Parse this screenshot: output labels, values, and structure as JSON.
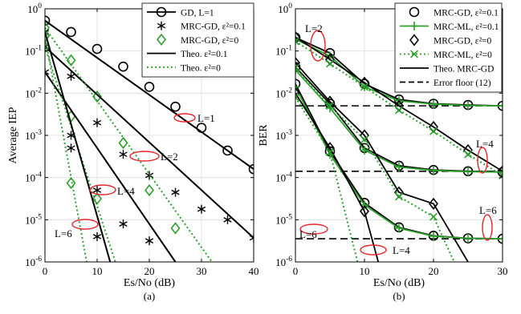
{
  "chart_data": [
    {
      "type": "line",
      "panel_label": "(a)",
      "xlabel": "Es/No (dB)",
      "ylabel": "Average IEP",
      "xlim": [
        0,
        40
      ],
      "ylim_log10": [
        -6,
        0
      ],
      "yscale": "log",
      "grid": true,
      "legend_position": "top-right",
      "xticks": [
        0,
        10,
        20,
        30,
        40
      ],
      "yticks": [
        {
          "exp": 0,
          "base": "10",
          "sup": "0"
        },
        {
          "exp": -1,
          "base": "10",
          "sup": "-1"
        },
        {
          "exp": -2,
          "base": "10",
          "sup": "-2"
        },
        {
          "exp": -3,
          "base": "10",
          "sup": "-3"
        },
        {
          "exp": -4,
          "base": "10",
          "sup": "-4"
        },
        {
          "exp": -5,
          "base": "10",
          "sup": "-5"
        },
        {
          "exp": -6,
          "base": "10",
          "sup": "-6"
        }
      ],
      "legend": [
        {
          "label": "GD, L=1",
          "marker": "circle",
          "line": "solid"
        },
        {
          "label": "MRC-GD, ε²=0.1",
          "marker": "asterisk",
          "line": "none"
        },
        {
          "label": "MRC-GD, ε²=0",
          "marker": "diamond",
          "line": "none",
          "color": "#2ca02c"
        },
        {
          "label": "Theo. ε²=0.1",
          "marker": "none",
          "line": "solid"
        },
        {
          "label": "Theo. ε²=0",
          "marker": "none",
          "line": "dotted",
          "color": "#2ca02c"
        }
      ],
      "annotations": [
        "L=1",
        "L=2",
        "L=4",
        "L=6"
      ],
      "series": [
        {
          "group": "L=1",
          "kind": "sim-gd",
          "x": [
            0,
            5,
            10,
            15,
            20,
            25,
            30,
            35,
            40
          ],
          "y_log10": [
            -0.28,
            -0.55,
            -0.95,
            -1.37,
            -1.85,
            -2.32,
            -2.82,
            -3.36,
            -3.8
          ]
        },
        {
          "group": "L=1",
          "kind": "theo-0.1",
          "x": [
            0,
            40
          ],
          "y_log10": [
            -0.28,
            -3.8
          ]
        },
        {
          "group": "L=2",
          "kind": "sim-0.1",
          "x": [
            0,
            5,
            10,
            15,
            20,
            25,
            30,
            35,
            40
          ],
          "y_log10": [
            -0.9,
            -1.6,
            -2.7,
            -3.45,
            -3.95,
            -4.35,
            -4.75,
            -5.0,
            -5.43
          ]
        },
        {
          "group": "L=2",
          "kind": "sim-0",
          "x": [
            0,
            5,
            10,
            15,
            20,
            25
          ],
          "y_log10": [
            -0.45,
            -1.22,
            -2.08,
            -3.18,
            -4.3,
            -5.2
          ]
        },
        {
          "group": "L=2",
          "kind": "theo-0.1",
          "x": [
            0,
            40
          ],
          "y_log10": [
            -0.9,
            -5.43
          ]
        },
        {
          "group": "L=2",
          "kind": "theo-0",
          "x": [
            0,
            32
          ],
          "y_log10": [
            -0.45,
            -6
          ]
        },
        {
          "group": "L=4",
          "kind": "sim-0.1",
          "x": [
            0,
            5,
            10,
            15,
            20
          ],
          "y_log10": [
            -1.5,
            -3.3,
            -4.3,
            -5.1,
            -5.5
          ]
        },
        {
          "group": "L=4",
          "kind": "sim-0",
          "x": [
            0,
            5,
            10
          ],
          "y_log10": [
            -0.9,
            -2.55,
            -4.5
          ]
        },
        {
          "group": "L=4",
          "kind": "theo-0.1",
          "x": [
            0,
            25
          ],
          "y_log10": [
            -1.5,
            -6
          ]
        },
        {
          "group": "L=4",
          "kind": "theo-0",
          "x": [
            0,
            13.5
          ],
          "y_log10": [
            -0.9,
            -6
          ]
        },
        {
          "group": "L=6",
          "kind": "sim-0.1",
          "x": [
            0,
            5,
            10
          ],
          "y_log10": [
            -0.55,
            -3.0,
            -5.4
          ]
        },
        {
          "group": "L=6",
          "kind": "sim-0",
          "x": [
            0,
            5
          ],
          "y_log10": [
            -0.65,
            -4.13
          ]
        },
        {
          "group": "L=6",
          "kind": "theo-0.1",
          "x": [
            0,
            12.5
          ],
          "y_log10": [
            -0.55,
            -6
          ]
        },
        {
          "group": "L=6",
          "kind": "theo-0",
          "x": [
            0,
            8
          ],
          "y_log10": [
            -0.65,
            -6
          ]
        }
      ]
    },
    {
      "type": "line",
      "panel_label": "(b)",
      "xlabel": "Es/No (dB)",
      "ylabel": "BER",
      "xlim": [
        0,
        30
      ],
      "ylim_log10": [
        -6,
        0
      ],
      "yscale": "log",
      "grid": true,
      "legend_position": "top-right",
      "xticks": [
        0,
        10,
        20,
        30
      ],
      "yticks": [
        {
          "exp": 0,
          "base": "10",
          "sup": "0"
        },
        {
          "exp": -1,
          "base": "10",
          "sup": "-1"
        },
        {
          "exp": -2,
          "base": "10",
          "sup": "-2"
        },
        {
          "exp": -3,
          "base": "10",
          "sup": "-3"
        },
        {
          "exp": -4,
          "base": "10",
          "sup": "-4"
        },
        {
          "exp": -5,
          "base": "10",
          "sup": "-5"
        },
        {
          "exp": -6,
          "base": "10",
          "sup": "-6"
        }
      ],
      "legend": [
        {
          "label": "MRC-GD, ε²=0.1",
          "marker": "circle",
          "line": "none"
        },
        {
          "label": "MRC-ML, ε²=0.1",
          "marker": "plus",
          "line": "solid",
          "color": "#2ca02c"
        },
        {
          "label": "MRC-GD, ε²=0",
          "marker": "diamond",
          "line": "none"
        },
        {
          "label": "MRC-ML, ε²=0",
          "marker": "x",
          "line": "dotted",
          "color": "#2ca02c"
        },
        {
          "label": "Theo. MRC-GD",
          "marker": "none",
          "line": "solid"
        },
        {
          "label": "Error floor (12)",
          "marker": "none",
          "line": "dashed"
        }
      ],
      "annotations": [
        "L=2",
        "L=4",
        "L=6",
        "L=6",
        "L=4"
      ],
      "error_floors_log10": [
        -2.3,
        -3.85,
        -5.45
      ],
      "series": [
        {
          "group": "L=2",
          "kind": "gd-0.1",
          "x": [
            0,
            5,
            10,
            15,
            20,
            25,
            30
          ],
          "y_log10": [
            -0.68,
            -1.05,
            -1.78,
            -2.15,
            -2.25,
            -2.28,
            -2.3
          ]
        },
        {
          "group": "L=2",
          "kind": "ml-0.1",
          "x": [
            0,
            5,
            10,
            15,
            20,
            25,
            30
          ],
          "y_log10": [
            -0.72,
            -1.12,
            -1.85,
            -2.18,
            -2.26,
            -2.29,
            -2.3
          ]
        },
        {
          "group": "L=2",
          "kind": "gd-0",
          "x": [
            0,
            5,
            10,
            15,
            20,
            25,
            30
          ],
          "y_log10": [
            -0.67,
            -1.2,
            -1.75,
            -2.3,
            -2.8,
            -3.35,
            -3.85
          ]
        },
        {
          "group": "L=2",
          "kind": "ml-0",
          "x": [
            0,
            5,
            10,
            15,
            20,
            25,
            30
          ],
          "y_log10": [
            -0.77,
            -1.3,
            -1.85,
            -2.4,
            -2.9,
            -3.45,
            -3.95
          ]
        },
        {
          "group": "L=4",
          "kind": "gd-0.1",
          "x": [
            0,
            5,
            10,
            15,
            20,
            25,
            30
          ],
          "y_log10": [
            -1.38,
            -2.25,
            -3.3,
            -3.72,
            -3.82,
            -3.85,
            -3.87
          ]
        },
        {
          "group": "L=4",
          "kind": "ml-0.1",
          "x": [
            0,
            5,
            10,
            15,
            20,
            25,
            30
          ],
          "y_log10": [
            -1.45,
            -2.35,
            -3.35,
            -3.75,
            -3.83,
            -3.86,
            -3.87
          ]
        },
        {
          "group": "L=4",
          "kind": "gd-0",
          "x": [
            0,
            5,
            10,
            15,
            20,
            25
          ],
          "y_log10": [
            -1.28,
            -2.2,
            -3.0,
            -4.35,
            -4.62,
            -6
          ]
        },
        {
          "group": "L=4",
          "kind": "ml-0",
          "x": [
            0,
            5,
            10,
            15,
            20,
            23
          ],
          "y_log10": [
            -1.4,
            -2.3,
            -3.1,
            -4.45,
            -4.93,
            -6
          ]
        },
        {
          "group": "L=6",
          "kind": "gd-0.1",
          "x": [
            0,
            5,
            10,
            15,
            20,
            25,
            30
          ],
          "y_log10": [
            -1.78,
            -3.38,
            -4.6,
            -5.18,
            -5.38,
            -5.44,
            -5.45
          ]
        },
        {
          "group": "L=6",
          "kind": "ml-0.1",
          "x": [
            0,
            5,
            10,
            15,
            20,
            25,
            30
          ],
          "y_log10": [
            -1.85,
            -3.45,
            -4.65,
            -5.2,
            -5.39,
            -5.44,
            -5.45
          ]
        },
        {
          "group": "L=6",
          "kind": "gd-0",
          "x": [
            0,
            5,
            10,
            12
          ],
          "y_log10": [
            -2.0,
            -3.3,
            -4.8,
            -6
          ]
        },
        {
          "group": "L=6",
          "kind": "ml-0",
          "x": [
            0,
            5,
            9
          ],
          "y_log10": [
            -2.1,
            -3.4,
            -6
          ]
        }
      ]
    }
  ]
}
